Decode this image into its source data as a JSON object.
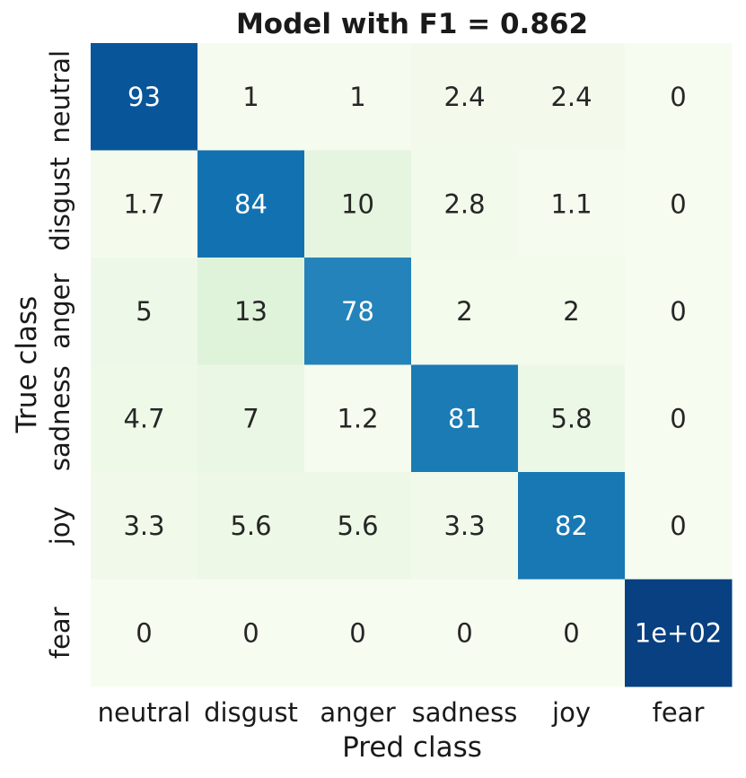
{
  "chart_data": {
    "type": "heatmap",
    "title": "Model with F1 = 0.862",
    "xlabel": "Pred class",
    "ylabel": "True class",
    "x_categories": [
      "neutral",
      "disgust",
      "anger",
      "sadness",
      "joy",
      "fear"
    ],
    "y_categories": [
      "neutral",
      "disgust",
      "anger",
      "sadness",
      "joy",
      "fear"
    ],
    "values": [
      [
        93,
        1,
        1,
        2.4,
        2.4,
        0
      ],
      [
        1.7,
        84,
        10,
        2.8,
        1.1,
        0
      ],
      [
        5,
        13,
        78,
        2,
        2,
        0
      ],
      [
        4.7,
        7,
        1.2,
        81,
        5.8,
        0
      ],
      [
        3.3,
        5.6,
        5.6,
        3.3,
        82,
        0
      ],
      [
        0,
        0,
        0,
        0,
        0,
        100
      ]
    ],
    "cell_labels": [
      [
        "93",
        "1",
        "1",
        "2.4",
        "2.4",
        "0"
      ],
      [
        "1.7",
        "84",
        "10",
        "2.8",
        "1.1",
        "0"
      ],
      [
        "5",
        "13",
        "78",
        "2",
        "2",
        "0"
      ],
      [
        "4.7",
        "7",
        "1.2",
        "81",
        "5.8",
        "0"
      ],
      [
        "3.3",
        "5.6",
        "5.6",
        "3.3",
        "82",
        "0"
      ],
      [
        "0",
        "0",
        "0",
        "0",
        "0",
        "1e+02"
      ]
    ],
    "colormap": "GnBu",
    "value_range": [
      0,
      100
    ],
    "colorbar": false,
    "grid": false
  }
}
